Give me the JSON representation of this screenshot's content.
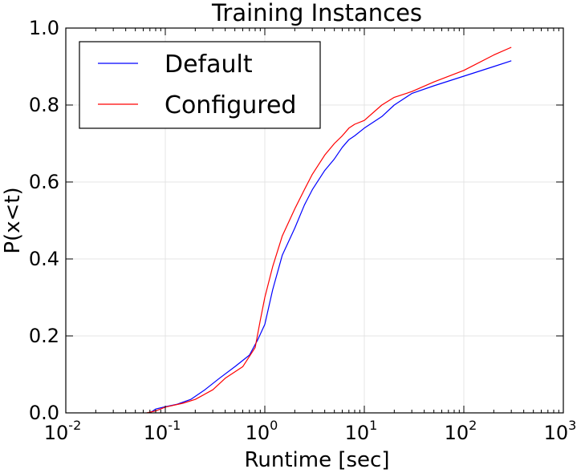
{
  "chart_data": {
    "type": "line",
    "title": "Training Instances",
    "xlabel": "Runtime [sec]",
    "ylabel": "P(x<t)",
    "xscale": "log",
    "xlim": [
      0.01,
      1000
    ],
    "ylim": [
      0.0,
      1.0
    ],
    "grid": true,
    "legend_position": "top-left",
    "x_ticks": [
      {
        "base": "10",
        "exp": "-2",
        "value": 0.01
      },
      {
        "base": "10",
        "exp": "-1",
        "value": 0.1
      },
      {
        "base": "10",
        "exp": "0",
        "value": 1
      },
      {
        "base": "10",
        "exp": "1",
        "value": 10
      },
      {
        "base": "10",
        "exp": "2",
        "value": 100
      },
      {
        "base": "10",
        "exp": "3",
        "value": 1000
      }
    ],
    "y_ticks": [
      {
        "label": "0.0",
        "value": 0.0
      },
      {
        "label": "0.2",
        "value": 0.2
      },
      {
        "label": "0.4",
        "value": 0.4
      },
      {
        "label": "0.6",
        "value": 0.6
      },
      {
        "label": "0.8",
        "value": 0.8
      },
      {
        "label": "1.0",
        "value": 1.0
      }
    ],
    "series": [
      {
        "name": "Default",
        "color": "#0000ff",
        "x": [
          0.07,
          0.08,
          0.1,
          0.13,
          0.18,
          0.25,
          0.35,
          0.5,
          0.7,
          0.85,
          1.0,
          1.2,
          1.5,
          2.0,
          2.5,
          3.0,
          4.0,
          5.0,
          6.0,
          7.0,
          8.0,
          10.0,
          15.0,
          20.0,
          30.0,
          50.0,
          100.0,
          200.0,
          300.0
        ],
        "y": [
          0.0,
          0.01,
          0.016,
          0.022,
          0.035,
          0.06,
          0.09,
          0.12,
          0.15,
          0.19,
          0.23,
          0.32,
          0.41,
          0.48,
          0.54,
          0.58,
          0.63,
          0.66,
          0.69,
          0.71,
          0.72,
          0.74,
          0.77,
          0.8,
          0.83,
          0.85,
          0.875,
          0.9,
          0.915
        ]
      },
      {
        "name": "Configured",
        "color": "#ff0000",
        "x": [
          0.065,
          0.08,
          0.1,
          0.15,
          0.2,
          0.3,
          0.4,
          0.6,
          0.8,
          0.9,
          1.0,
          1.2,
          1.5,
          2.0,
          2.5,
          3.0,
          4.0,
          5.0,
          6.0,
          7.0,
          8.0,
          10.0,
          15.0,
          20.0,
          30.0,
          50.0,
          100.0,
          200.0,
          300.0
        ],
        "y": [
          0.0,
          0.005,
          0.015,
          0.025,
          0.035,
          0.06,
          0.09,
          0.12,
          0.17,
          0.24,
          0.3,
          0.38,
          0.46,
          0.53,
          0.58,
          0.62,
          0.67,
          0.7,
          0.72,
          0.74,
          0.75,
          0.76,
          0.8,
          0.82,
          0.835,
          0.86,
          0.89,
          0.93,
          0.95
        ]
      }
    ]
  }
}
